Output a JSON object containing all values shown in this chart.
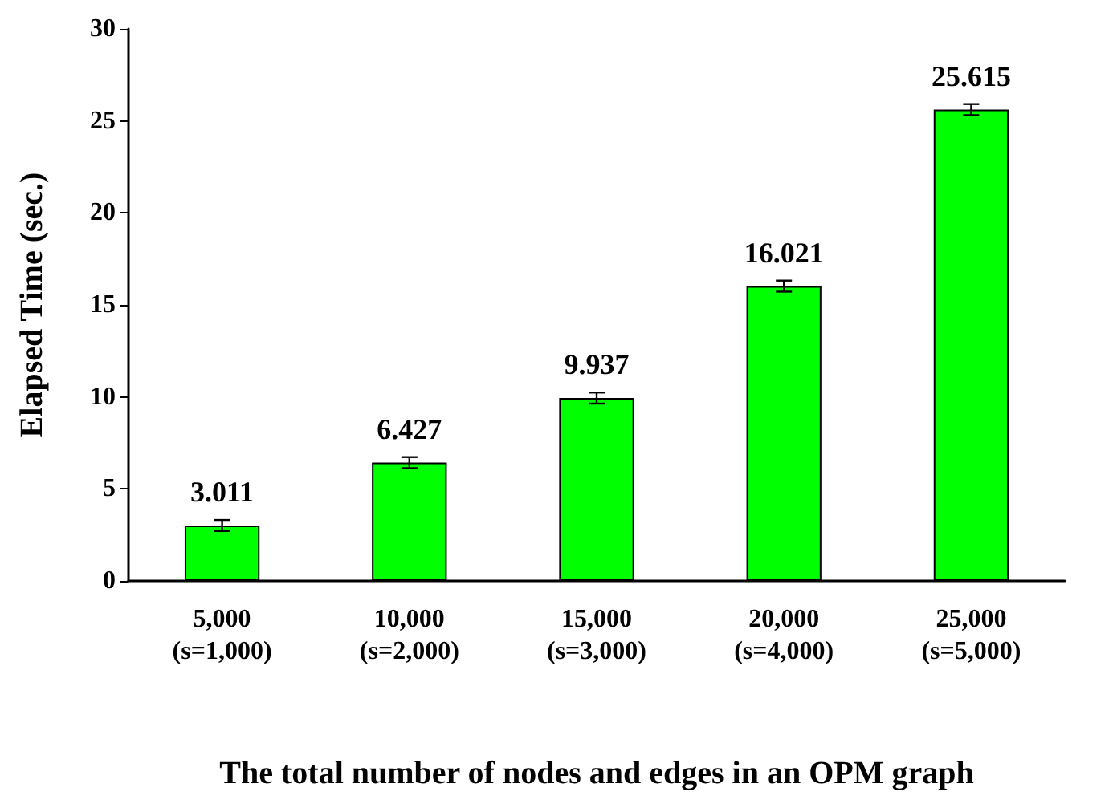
{
  "chart_data": {
    "type": "bar",
    "xlabel": "The total number of nodes and edges in an OPM graph",
    "ylabel": "Elapsed Time (sec.)",
    "categories": [
      "5,000\n(s=1,000)",
      "10,000\n(s=2,000)",
      "15,000\n(s=3,000)",
      "20,000\n(s=4,000)",
      "25,000\n(s=5,000)"
    ],
    "values": [
      3.011,
      6.427,
      9.937,
      16.021,
      25.615
    ],
    "errors": [
      0.3,
      0.3,
      0.3,
      0.3,
      0.3
    ],
    "color": "#00ff00",
    "ylim": [
      0,
      30
    ],
    "yticks": [
      0,
      5,
      10,
      15,
      20,
      25,
      30
    ],
    "grid": false,
    "data_labels": true
  }
}
